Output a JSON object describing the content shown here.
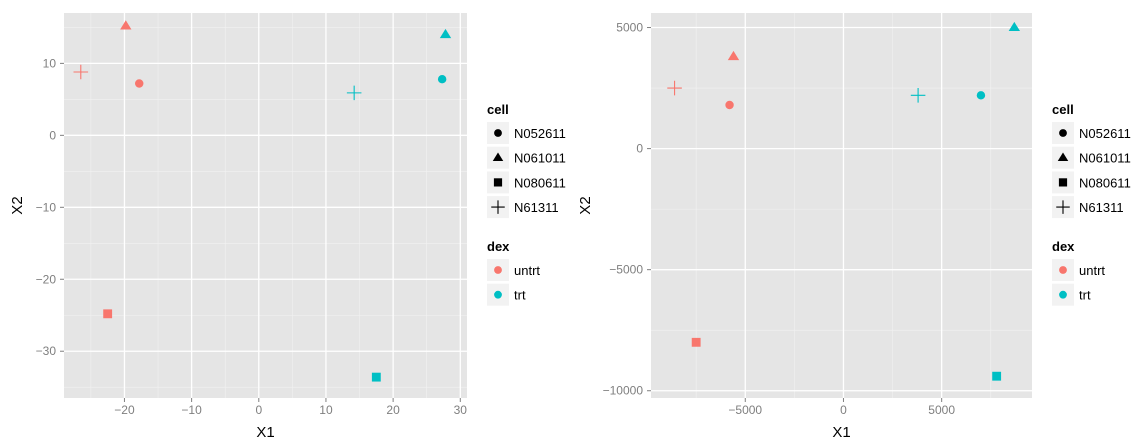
{
  "chart_data": [
    {
      "type": "scatter",
      "xlabel": "X1",
      "ylabel": "X2",
      "xlim": [
        -29,
        31
      ],
      "ylim": [
        -36.5,
        17
      ],
      "x_ticks": [
        -20,
        -10,
        0,
        10,
        20,
        30
      ],
      "y_ticks": [
        -30,
        -20,
        -10,
        0,
        10
      ],
      "x_tick_labels": [
        "−20",
        "−10",
        "0",
        "10",
        "20",
        "30"
      ],
      "y_tick_labels": [
        "−30",
        "−20",
        "−10",
        "0",
        "10"
      ],
      "grid": true,
      "points": [
        {
          "x": -26.5,
          "y": 8.8,
          "cell": "N61311",
          "dex": "untrt"
        },
        {
          "x": -19.8,
          "y": 15.2,
          "cell": "N061011",
          "dex": "untrt"
        },
        {
          "x": -17.8,
          "y": 7.2,
          "cell": "N052611",
          "dex": "untrt"
        },
        {
          "x": -22.5,
          "y": -24.8,
          "cell": "N080611",
          "dex": "untrt"
        },
        {
          "x": 14.2,
          "y": 5.9,
          "cell": "N61311",
          "dex": "trt"
        },
        {
          "x": 27.8,
          "y": 14.0,
          "cell": "N061011",
          "dex": "trt"
        },
        {
          "x": 27.3,
          "y": 7.8,
          "cell": "N052611",
          "dex": "trt"
        },
        {
          "x": 17.5,
          "y": -33.6,
          "cell": "N080611",
          "dex": "trt"
        }
      ]
    },
    {
      "type": "scatter",
      "xlabel": "X1",
      "ylabel": "X2",
      "xlim": [
        -9800,
        9600
      ],
      "ylim": [
        -10300,
        5600
      ],
      "x_ticks": [
        -5000,
        0,
        5000
      ],
      "y_ticks": [
        -10000,
        -5000,
        0,
        5000
      ],
      "x_tick_labels": [
        "−5000",
        "0",
        "5000"
      ],
      "y_tick_labels": [
        "−10000",
        "−5000",
        "0",
        "5000"
      ],
      "grid": true,
      "points": [
        {
          "x": -8600,
          "y": 2500,
          "cell": "N61311",
          "dex": "untrt"
        },
        {
          "x": -5600,
          "y": 3800,
          "cell": "N061011",
          "dex": "untrt"
        },
        {
          "x": -5800,
          "y": 1800,
          "cell": "N052611",
          "dex": "untrt"
        },
        {
          "x": -7500,
          "y": -8000,
          "cell": "N080611",
          "dex": "untrt"
        },
        {
          "x": 3800,
          "y": 2200,
          "cell": "N61311",
          "dex": "trt"
        },
        {
          "x": 8700,
          "y": 5000,
          "cell": "N061011",
          "dex": "trt"
        },
        {
          "x": 7000,
          "y": 2200,
          "cell": "N052611",
          "dex": "trt"
        },
        {
          "x": 7800,
          "y": -9400,
          "cell": "N080611",
          "dex": "trt"
        }
      ]
    }
  ],
  "legend": {
    "cell_title": "cell",
    "cell_items": [
      {
        "label": "N052611",
        "shape": "circle"
      },
      {
        "label": "N061011",
        "shape": "triangle"
      },
      {
        "label": "N080611",
        "shape": "square"
      },
      {
        "label": "N61311",
        "shape": "plus"
      }
    ],
    "dex_title": "dex",
    "dex_items": [
      {
        "label": "untrt",
        "color": "#F8766D"
      },
      {
        "label": "trt",
        "color": "#00BFC4"
      }
    ]
  },
  "colors": {
    "untrt": "#F8766D",
    "trt": "#00BFC4",
    "panel": "#E5E5E5",
    "grid_major": "#FFFFFF",
    "grid_minor": "#F2F2F2",
    "tick_text": "#7F7F7F"
  }
}
